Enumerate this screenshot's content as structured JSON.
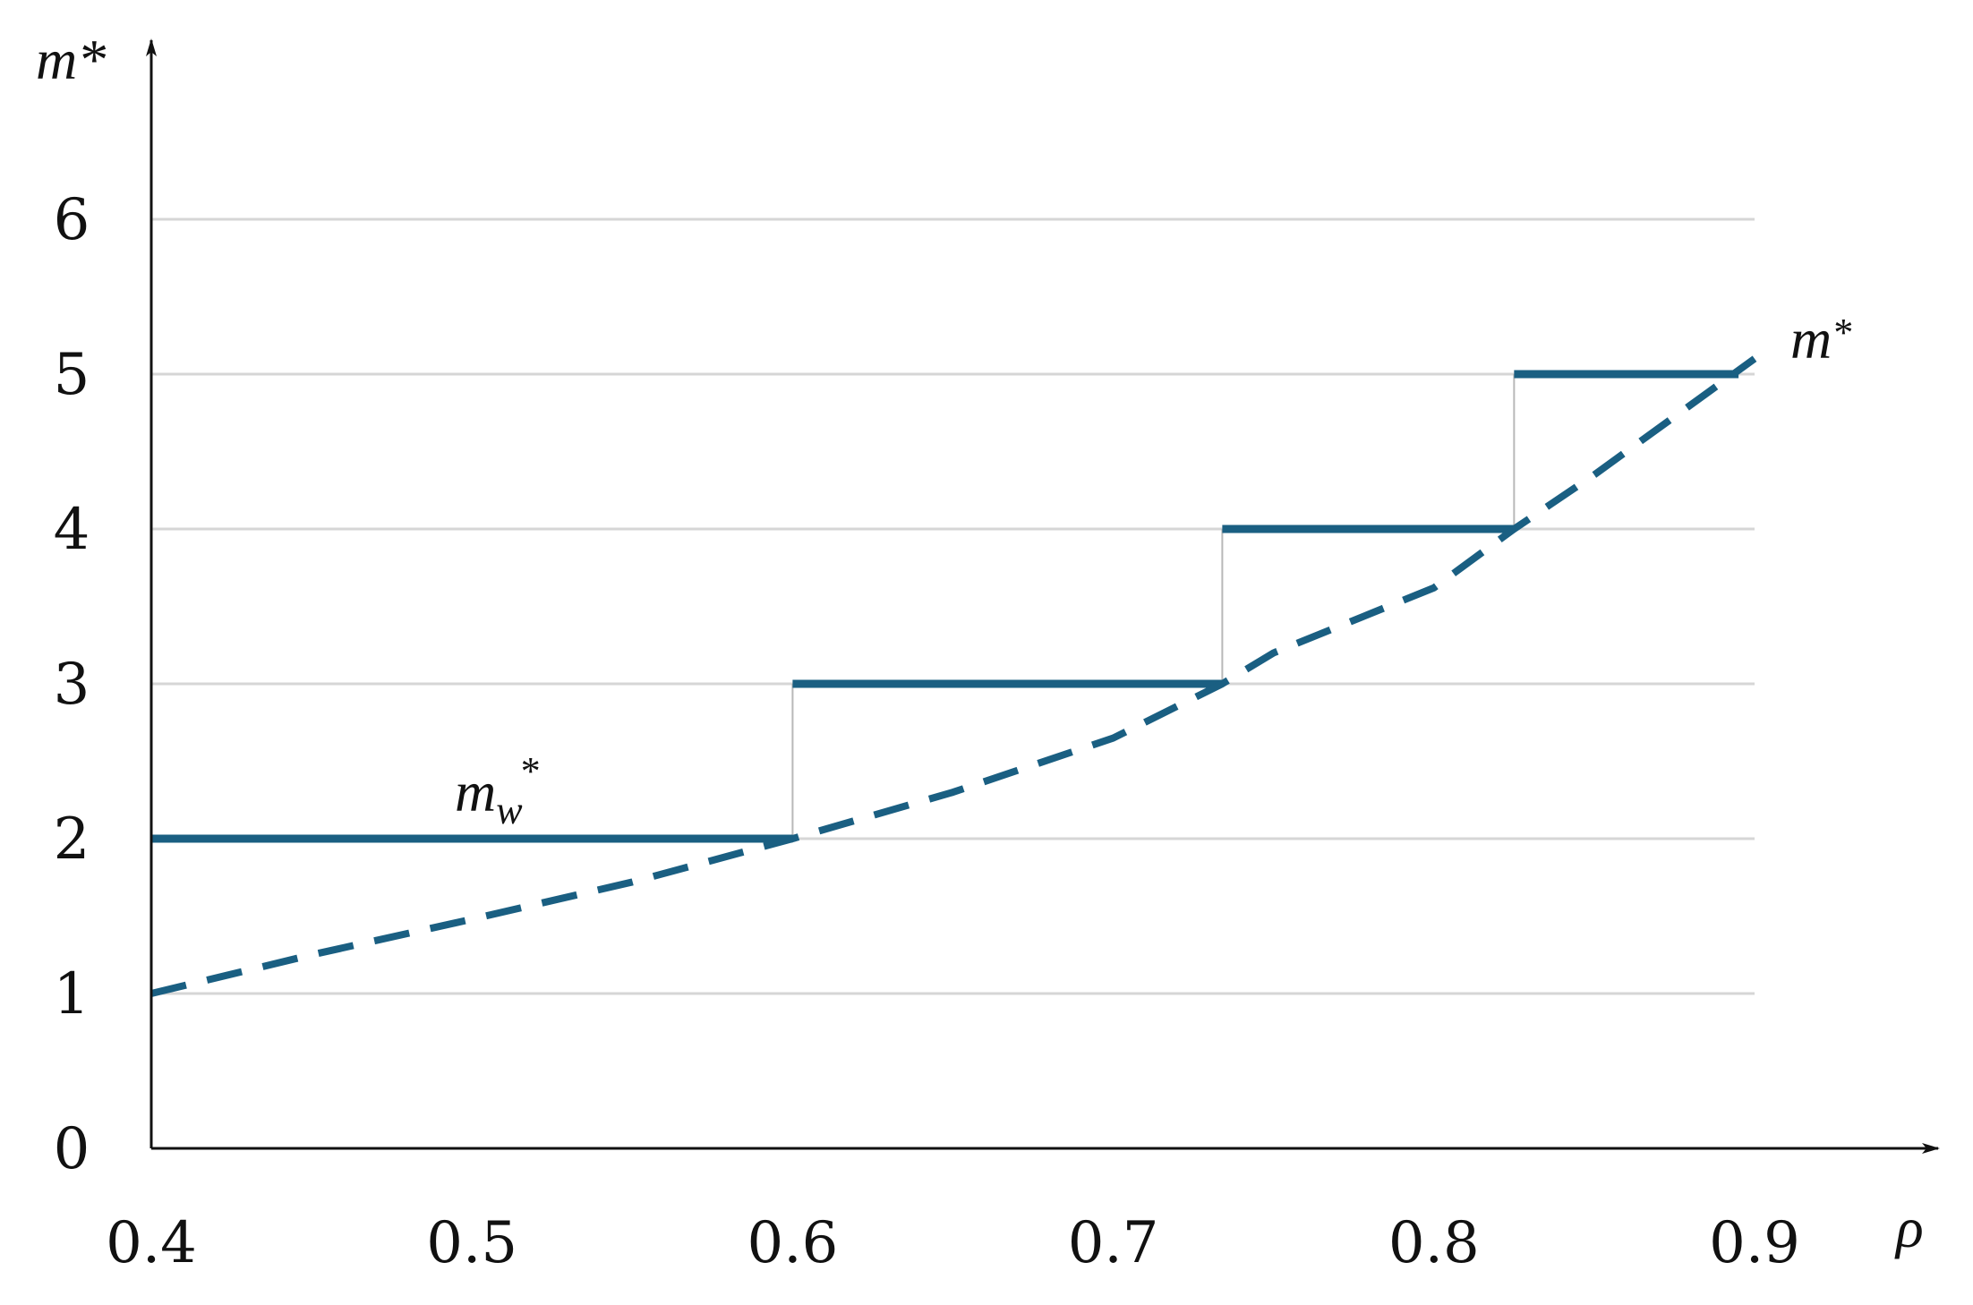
{
  "chart_data": {
    "type": "line",
    "xlabel": "ρ",
    "ylabel": "m*",
    "xlim": [
      0.4,
      0.9
    ],
    "ylim": [
      0,
      6
    ],
    "x_ticks": [
      "0.4",
      "0.5",
      "0.6",
      "0.7",
      "0.8",
      "0.9"
    ],
    "y_ticks": [
      "0",
      "1",
      "2",
      "3",
      "4",
      "5",
      "6"
    ],
    "grid": true,
    "colors": {
      "series": "#1a5f82",
      "grid": "#d6d6d6",
      "axis": "#111111",
      "connector": "#b8b8b8"
    },
    "series": [
      {
        "name": "m*",
        "style": "dashed",
        "label": {
          "base": "m",
          "sup": "*"
        },
        "x": [
          0.4,
          0.45,
          0.5,
          0.55,
          0.6,
          0.65,
          0.7,
          0.734,
          0.75,
          0.8,
          0.825,
          0.85,
          0.9
        ],
        "y": [
          1.0,
          1.25,
          1.48,
          1.72,
          2.0,
          2.3,
          2.65,
          3.0,
          3.2,
          3.62,
          4.0,
          4.35,
          5.1
        ]
      },
      {
        "name": "m_w*",
        "style": "step",
        "label": {
          "base": "m",
          "sub": "w",
          "sup": "*"
        },
        "steps": [
          {
            "x0": 0.4,
            "x1": 0.6,
            "y": 2
          },
          {
            "x0": 0.6,
            "x1": 0.734,
            "y": 3
          },
          {
            "x0": 0.734,
            "x1": 0.825,
            "y": 4
          },
          {
            "x0": 0.825,
            "x1": 0.895,
            "y": 5
          }
        ]
      }
    ]
  }
}
